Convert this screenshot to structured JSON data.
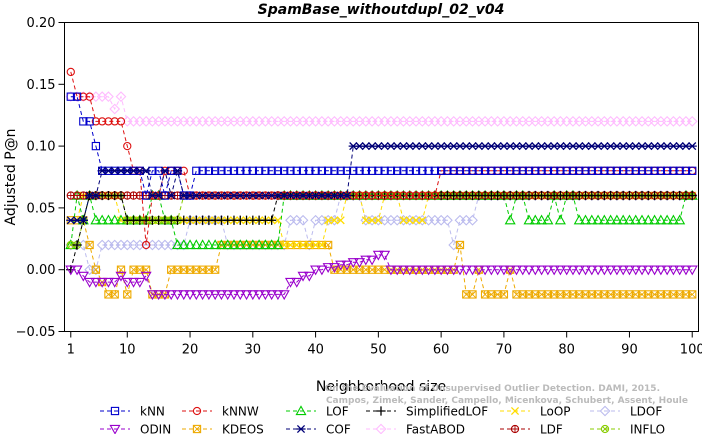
{
  "chart_data": {
    "type": "line",
    "title": "SpamBase_withoutdupl_02_v04",
    "xlabel": "Neighborhood size",
    "ylabel": "Adjusted P@n",
    "xlim": [
      0,
      101
    ],
    "ylim": [
      -0.05,
      0.2
    ],
    "xticks": [
      "1",
      "10",
      "20",
      "30",
      "40",
      "50",
      "60",
      "70",
      "80",
      "90",
      "100"
    ],
    "yticks": [
      "−0.05",
      "0.00",
      "0.05",
      "0.10",
      "0.15",
      "0.20"
    ],
    "watermark": {
      "line1": "Campos, Zimek, Sander, Campello, Micenkova, Schubert, Assent, Houle",
      "line2": "On the Evaluation of Unsupervised Outlier Detection. DAMI, 2015."
    },
    "legend_position": "bottom",
    "series": [
      {
        "name": "kNN",
        "color": "#0000cc",
        "marker": "square",
        "segments": [
          [
            1,
            0.14
          ],
          [
            3,
            0.12
          ],
          [
            5,
            0.1
          ],
          [
            6,
            0.08
          ],
          [
            12,
            0.08
          ],
          [
            13,
            0.06
          ],
          [
            14,
            0.08
          ],
          [
            16,
            0.06
          ],
          [
            17,
            0.08
          ],
          [
            19,
            0.06
          ],
          [
            21,
            0.08
          ],
          [
            100,
            0.08
          ]
        ]
      },
      {
        "name": "kNNW",
        "color": "#dd1111",
        "marker": "circle",
        "segments": [
          [
            1,
            0.16
          ],
          [
            2,
            0.14
          ],
          [
            4,
            0.14
          ],
          [
            5,
            0.12
          ],
          [
            9,
            0.12
          ],
          [
            10,
            0.1
          ],
          [
            11,
            0.08
          ],
          [
            13,
            0.02
          ],
          [
            14,
            0.06
          ],
          [
            15,
            0.06
          ],
          [
            16,
            0.08
          ],
          [
            19,
            0.08
          ],
          [
            20,
            0.06
          ],
          [
            22,
            0.06
          ],
          [
            23,
            0.06
          ],
          [
            59,
            0.06
          ],
          [
            60,
            0.08
          ],
          [
            100,
            0.08
          ]
        ]
      },
      {
        "name": "LOF",
        "color": "#00cc00",
        "marker": "triangle-up",
        "segments": [
          [
            1,
            0.02
          ],
          [
            2,
            0.06
          ],
          [
            3,
            0.04
          ],
          [
            4,
            0.06
          ],
          [
            5,
            0.04
          ],
          [
            13,
            0.04
          ],
          [
            14,
            0.06
          ],
          [
            16,
            0.04
          ],
          [
            18,
            0.02
          ],
          [
            34,
            0.02
          ],
          [
            35,
            0.06
          ],
          [
            70,
            0.06
          ],
          [
            71,
            0.04
          ],
          [
            72,
            0.06
          ],
          [
            74,
            0.04
          ],
          [
            77,
            0.04
          ],
          [
            78,
            0.06
          ],
          [
            79,
            0.04
          ],
          [
            80,
            0.06
          ],
          [
            82,
            0.04
          ],
          [
            98,
            0.04
          ],
          [
            99,
            0.06
          ],
          [
            100,
            0.06
          ]
        ]
      },
      {
        "name": "SimplifiedLOF",
        "color": "#000000",
        "marker": "plus",
        "segments": [
          [
            1,
            0.0
          ],
          [
            2,
            0.02
          ],
          [
            3,
            0.04
          ],
          [
            4,
            0.06
          ],
          [
            9,
            0.06
          ],
          [
            10,
            0.04
          ],
          [
            33,
            0.04
          ],
          [
            34,
            0.06
          ],
          [
            100,
            0.06
          ]
        ]
      },
      {
        "name": "LoOP",
        "color": "#ffdd00",
        "marker": "x",
        "segments": [
          [
            1,
            0.04
          ],
          [
            2,
            0.04
          ],
          [
            3,
            0.06
          ],
          [
            8,
            0.06
          ],
          [
            9,
            0.04
          ],
          [
            34,
            0.04
          ],
          [
            35,
            0.02
          ],
          [
            41,
            0.02
          ],
          [
            42,
            0.04
          ],
          [
            44,
            0.04
          ],
          [
            45,
            0.06
          ],
          [
            47,
            0.06
          ],
          [
            48,
            0.04
          ],
          [
            50,
            0.04
          ],
          [
            51,
            0.06
          ],
          [
            53,
            0.06
          ],
          [
            54,
            0.04
          ],
          [
            57,
            0.04
          ],
          [
            58,
            0.06
          ],
          [
            100,
            0.06
          ]
        ]
      },
      {
        "name": "LDOF",
        "color": "#bbbbee",
        "marker": "diamond",
        "segments": [
          [
            1,
            0.02
          ],
          [
            3,
            0.02
          ],
          [
            4,
            0.0
          ],
          [
            6,
            0.02
          ],
          [
            18,
            0.02
          ],
          [
            20,
            0.04
          ],
          [
            24,
            0.04
          ],
          [
            26,
            0.02
          ],
          [
            35,
            0.02
          ],
          [
            36,
            0.04
          ],
          [
            38,
            0.04
          ],
          [
            39,
            0.02
          ],
          [
            40,
            0.04
          ],
          [
            43,
            0.04
          ],
          [
            44,
            0.06
          ],
          [
            47,
            0.06
          ],
          [
            48,
            0.04
          ],
          [
            60,
            0.04
          ],
          [
            62,
            0.02
          ],
          [
            63,
            0.04
          ],
          [
            65,
            0.04
          ],
          [
            66,
            0.06
          ],
          [
            100,
            0.06
          ]
        ]
      },
      {
        "name": "ODIN",
        "color": "#9900cc",
        "marker": "triangle-down",
        "segments": [
          [
            1,
            0.0
          ],
          [
            2,
            0.0
          ],
          [
            3,
            -0.005
          ],
          [
            4,
            -0.01
          ],
          [
            8,
            -0.01
          ],
          [
            9,
            -0.005
          ],
          [
            10,
            -0.01
          ],
          [
            12,
            -0.01
          ],
          [
            13,
            -0.005
          ],
          [
            14,
            -0.02
          ],
          [
            34,
            -0.02
          ],
          [
            36,
            -0.01
          ],
          [
            38,
            -0.005
          ],
          [
            40,
            0.0
          ],
          [
            42,
            0.002
          ],
          [
            44,
            0.004
          ],
          [
            46,
            0.006
          ],
          [
            48,
            0.008
          ],
          [
            50,
            0.012
          ],
          [
            51,
            0.012
          ],
          [
            52,
            0.0
          ],
          [
            100,
            0.0
          ]
        ]
      },
      {
        "name": "KDEOS",
        "color": "#eeaa00",
        "marker": "square-x",
        "segments": [
          [
            1,
            0.04
          ],
          [
            2,
            0.04
          ],
          [
            3,
            0.04
          ],
          [
            4,
            0.02
          ],
          [
            5,
            0.0
          ],
          [
            6,
            -0.01
          ],
          [
            7,
            -0.02
          ],
          [
            8,
            -0.02
          ],
          [
            9,
            0.0
          ],
          [
            10,
            -0.02
          ],
          [
            11,
            0.0
          ],
          [
            13,
            0.0
          ],
          [
            14,
            -0.02
          ],
          [
            16,
            -0.02
          ],
          [
            17,
            0.0
          ],
          [
            24,
            0.0
          ],
          [
            25,
            0.02
          ],
          [
            34,
            0.02
          ],
          [
            35,
            0.02
          ],
          [
            42,
            0.02
          ],
          [
            43,
            0.0
          ],
          [
            62,
            0.0
          ],
          [
            63,
            0.02
          ],
          [
            64,
            -0.02
          ],
          [
            65,
            -0.02
          ],
          [
            66,
            0.0
          ],
          [
            67,
            -0.02
          ],
          [
            70,
            -0.02
          ],
          [
            71,
            0.0
          ],
          [
            72,
            -0.02
          ],
          [
            100,
            -0.02
          ]
        ]
      },
      {
        "name": "COF",
        "color": "#000077",
        "marker": "asterisk",
        "segments": [
          [
            1,
            0.04
          ],
          [
            2,
            0.04
          ],
          [
            3,
            0.04
          ],
          [
            4,
            0.06
          ],
          [
            5,
            0.06
          ],
          [
            6,
            0.08
          ],
          [
            13,
            0.08
          ],
          [
            14,
            0.06
          ],
          [
            15,
            0.06
          ],
          [
            16,
            0.08
          ],
          [
            17,
            0.06
          ],
          [
            18,
            0.08
          ],
          [
            19,
            0.06
          ],
          [
            20,
            0.06
          ],
          [
            44,
            0.06
          ],
          [
            45,
            0.06
          ],
          [
            46,
            0.1
          ],
          [
            100,
            0.1
          ]
        ]
      },
      {
        "name": "FastABOD",
        "color": "#ffbbff",
        "marker": "diamond",
        "segments": [
          [
            1,
            0.14
          ],
          [
            7,
            0.14
          ],
          [
            8,
            0.13
          ],
          [
            9,
            0.14
          ],
          [
            10,
            0.12
          ],
          [
            100,
            0.12
          ]
        ]
      },
      {
        "name": "LDF",
        "color": "#aa0000",
        "marker": "circle-plus",
        "segments": [
          [
            1,
            0.06
          ],
          [
            16,
            0.06
          ],
          [
            17,
            0.06
          ],
          [
            100,
            0.06
          ]
        ]
      },
      {
        "name": "INFLO",
        "color": "#88cc00",
        "marker": "circle-x",
        "segments": [
          [
            1,
            0.02
          ],
          [
            2,
            0.02
          ],
          [
            3,
            0.04
          ],
          [
            4,
            0.06
          ],
          [
            9,
            0.06
          ],
          [
            10,
            0.04
          ],
          [
            18,
            0.04
          ],
          [
            19,
            0.06
          ],
          [
            100,
            0.06
          ]
        ]
      }
    ]
  }
}
